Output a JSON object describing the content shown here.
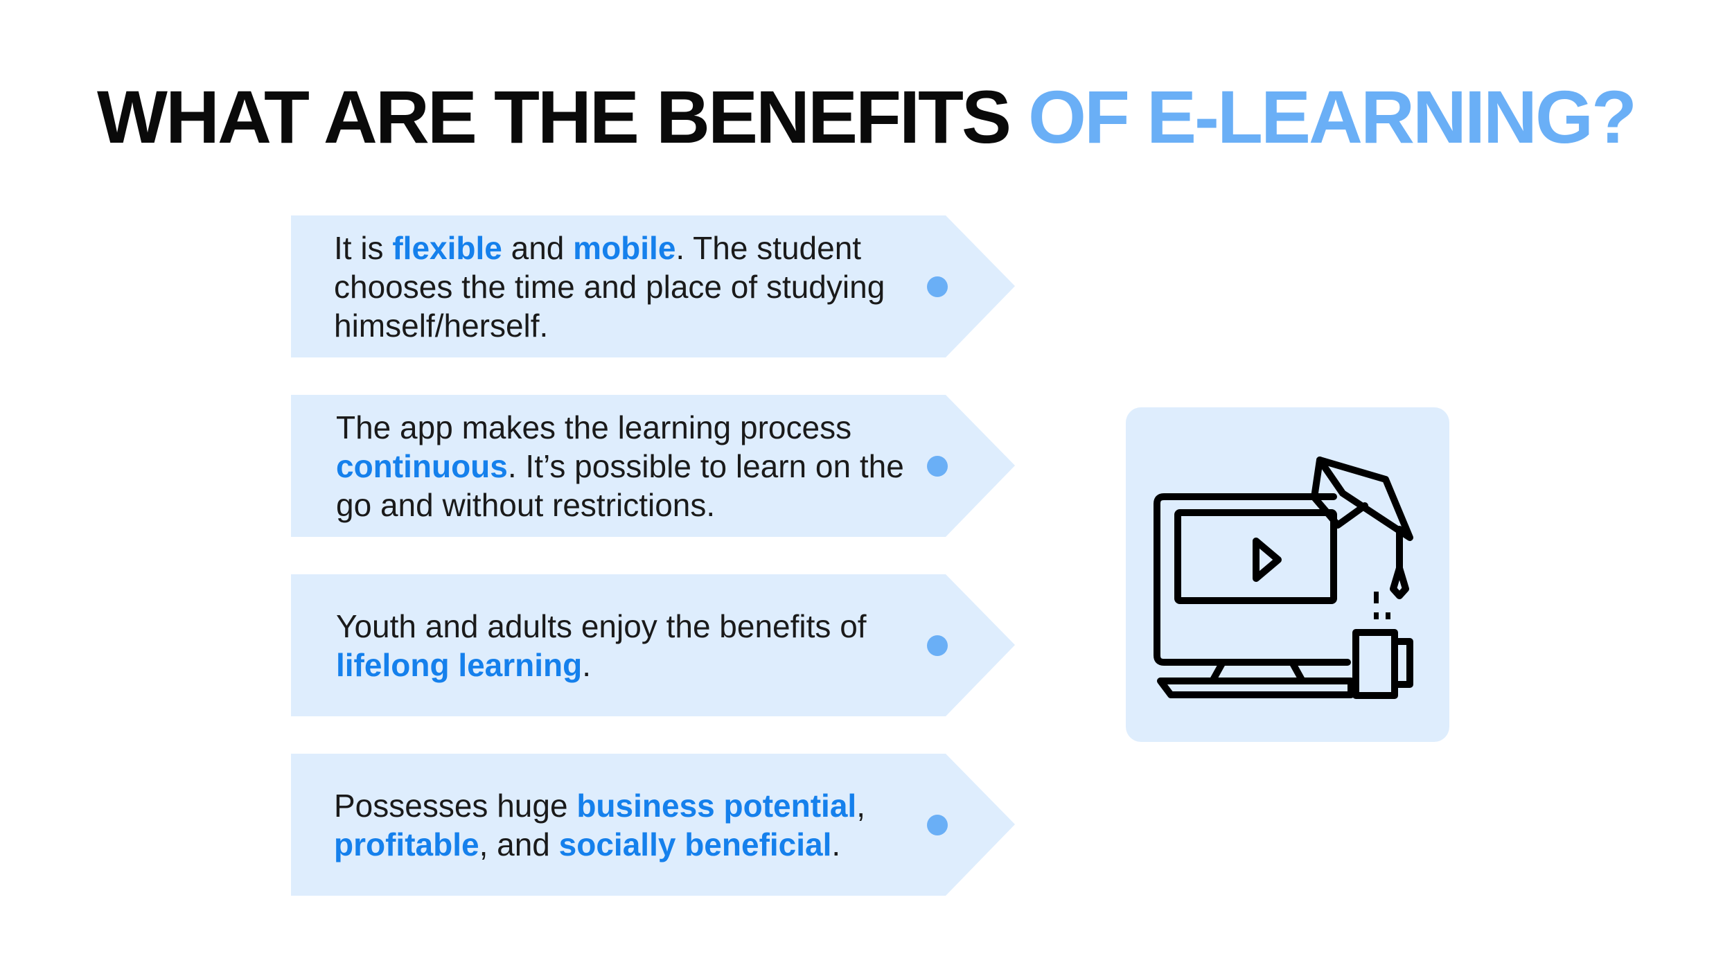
{
  "title": {
    "part1": "WHAT ARE THE BENEFITS",
    "part2": "OF E-LEARNING?",
    "accent_color": "#6aaff6"
  },
  "highlight_color": "#1580ec",
  "card_bg_color": "#deedfd",
  "icon": {
    "name": "elearning-computer-graduation-cap-icon"
  },
  "benefits": [
    {
      "t1": "It is ",
      "h1": "flexible",
      "t2": " and ",
      "h2": "mobile",
      "t3": ". The student chooses the time and place of studying himself/herself."
    },
    {
      "t1": "The app makes the learning process ",
      "h1": "continuous",
      "t2": ". It’s possible to learn on the go and without restrictions."
    },
    {
      "t1": "Youth and adults enjoy the benefits of ",
      "h1": "lifelong learning",
      "t2": "."
    },
    {
      "t1": "Possesses huge ",
      "h1": "business potential",
      "t2": ", ",
      "h2": "profitable",
      "t3": ", and ",
      "h3": "socially beneficial",
      "t4": "."
    }
  ]
}
